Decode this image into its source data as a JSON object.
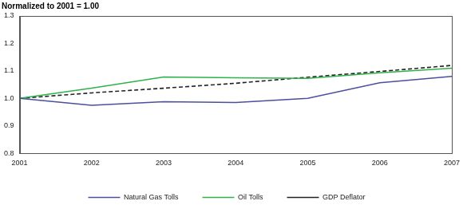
{
  "chart_data": {
    "type": "line",
    "title": "Normalized to 2001 = 1.00",
    "categories": [
      "2001",
      "2002",
      "2003",
      "2004",
      "2005",
      "2006",
      "2007"
    ],
    "series": [
      {
        "name": "Natural Gas Tolls",
        "color": "#4b4f9e",
        "line_style": "solid",
        "marker": "none",
        "values": [
          1.0,
          0.975,
          0.988,
          0.985,
          1.0,
          1.057,
          1.08
        ]
      },
      {
        "name": "Oil Tolls",
        "color": "#2db34a",
        "line_style": "solid",
        "marker": "none",
        "values": [
          1.0,
          1.037,
          1.078,
          1.075,
          1.073,
          1.093,
          1.11
        ]
      },
      {
        "name": "GDP Deflator",
        "color": "#222222",
        "line_style": "dashed",
        "marker": "none",
        "values": [
          1.0,
          1.02,
          1.037,
          1.055,
          1.077,
          1.098,
          1.12
        ]
      }
    ],
    "ylim": [
      0.8,
      1.3
    ],
    "yticks": [
      0.8,
      0.9,
      {
        "value": 1,
        "label": "1.0"
      },
      1.1,
      1.2,
      1.3
    ],
    "grid": false,
    "legend": "bottom"
  }
}
